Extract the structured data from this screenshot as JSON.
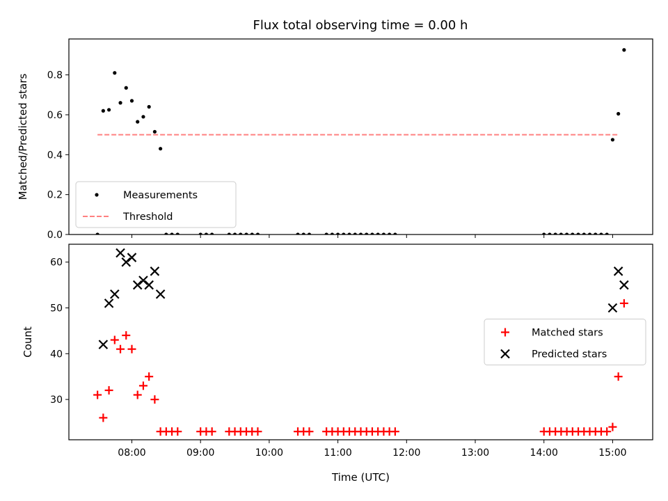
{
  "figure": {
    "title": "Flux total observing time = 0.00 h"
  },
  "colors": {
    "measurements": "#000000",
    "threshold": "#ff8080",
    "matched": "#ff0000",
    "predicted": "#000000"
  },
  "chart_data": [
    {
      "type": "scatter",
      "title": "Flux total observing time = 0.00 h",
      "xlabel": "",
      "ylabel": "Matched/Predicted stars",
      "x_is_time": true,
      "xlim": [
        "07:05",
        "15:35"
      ],
      "ylim": [
        0,
        0.98
      ],
      "yticks": [
        0.0,
        0.2,
        0.4,
        0.6,
        0.8
      ],
      "ytick_labels": [
        "0.0",
        "0.2",
        "0.4",
        "0.6",
        "0.8"
      ],
      "xticks": [
        "08:00",
        "09:00",
        "10:00",
        "11:00",
        "12:00",
        "13:00",
        "14:00",
        "15:00"
      ],
      "legend": {
        "position": "lower-left",
        "entries": [
          "Measurements",
          "Threshold"
        ]
      },
      "series": [
        {
          "name": "Measurements",
          "marker": "dot",
          "color": "#000000",
          "x": [
            "07:30",
            "07:35",
            "07:40",
            "07:45",
            "07:50",
            "07:55",
            "08:00",
            "08:05",
            "08:10",
            "08:15",
            "08:20",
            "08:25",
            "08:30",
            "08:35",
            "08:40",
            "09:00",
            "09:05",
            "09:10",
            "09:25",
            "09:30",
            "09:35",
            "09:40",
            "09:45",
            "09:50",
            "10:25",
            "10:30",
            "10:35",
            "10:50",
            "10:55",
            "11:00",
            "11:05",
            "11:10",
            "11:15",
            "11:20",
            "11:25",
            "11:30",
            "11:35",
            "11:40",
            "11:45",
            "11:50",
            "14:00",
            "14:05",
            "14:10",
            "14:15",
            "14:20",
            "14:25",
            "14:30",
            "14:35",
            "14:40",
            "14:45",
            "14:50",
            "14:55",
            "15:00",
            "15:05",
            "15:10"
          ],
          "y": [
            0.0,
            0.62,
            0.625,
            0.81,
            0.66,
            0.735,
            0.67,
            0.565,
            0.59,
            0.64,
            0.515,
            0.43,
            0.0,
            0.0,
            0.0,
            0.0,
            0.0,
            0.0,
            0.0,
            0.0,
            0.0,
            0.0,
            0.0,
            0.0,
            0.0,
            0.0,
            0.0,
            0.0,
            0.0,
            0.0,
            0.0,
            0.0,
            0.0,
            0.0,
            0.0,
            0.0,
            0.0,
            0.0,
            0.0,
            0.0,
            0.0,
            0.0,
            0.0,
            0.0,
            0.0,
            0.0,
            0.0,
            0.0,
            0.0,
            0.0,
            0.0,
            0.0,
            0.475,
            0.605,
            0.925
          ]
        },
        {
          "name": "Threshold",
          "type": "line",
          "style": "dashed",
          "color": "#ff8080",
          "x": [
            "07:30",
            "15:05"
          ],
          "y": [
            0.5,
            0.5
          ]
        }
      ]
    },
    {
      "type": "scatter",
      "title": "",
      "xlabel": "Time (UTC)",
      "ylabel": "Count",
      "x_is_time": true,
      "xlim": [
        "07:05",
        "15:35"
      ],
      "ylim": [
        21.2,
        63.9
      ],
      "yticks": [
        30,
        40,
        50,
        60
      ],
      "ytick_labels": [
        "30",
        "40",
        "50",
        "60"
      ],
      "xticks": [
        "08:00",
        "09:00",
        "10:00",
        "11:00",
        "12:00",
        "13:00",
        "14:00",
        "15:00"
      ],
      "xtick_labels": [
        "08:00",
        "09:00",
        "10:00",
        "11:00",
        "12:00",
        "13:00",
        "14:00",
        "15:00"
      ],
      "legend": {
        "position": "center-right",
        "entries": [
          "Matched stars",
          "Predicted stars"
        ]
      },
      "series": [
        {
          "name": "Matched stars",
          "marker": "plus",
          "color": "#ff0000",
          "x": [
            "07:30",
            "07:35",
            "07:40",
            "07:45",
            "07:50",
            "07:55",
            "08:00",
            "08:05",
            "08:10",
            "08:15",
            "08:20",
            "08:25",
            "08:30",
            "08:35",
            "08:40",
            "09:00",
            "09:05",
            "09:10",
            "09:25",
            "09:30",
            "09:35",
            "09:40",
            "09:45",
            "09:50",
            "10:25",
            "10:30",
            "10:35",
            "10:50",
            "10:55",
            "11:00",
            "11:05",
            "11:10",
            "11:15",
            "11:20",
            "11:25",
            "11:30",
            "11:35",
            "11:40",
            "11:45",
            "11:50",
            "14:00",
            "14:05",
            "14:10",
            "14:15",
            "14:20",
            "14:25",
            "14:30",
            "14:35",
            "14:40",
            "14:45",
            "14:50",
            "14:55",
            "15:00",
            "15:05",
            "15:10"
          ],
          "y": [
            31,
            26,
            32,
            43,
            41,
            44,
            41,
            31,
            33,
            35,
            30,
            23,
            23,
            23,
            23,
            23,
            23,
            23,
            23,
            23,
            23,
            23,
            23,
            23,
            23,
            23,
            23,
            23,
            23,
            23,
            23,
            23,
            23,
            23,
            23,
            23,
            23,
            23,
            23,
            23,
            23,
            23,
            23,
            23,
            23,
            23,
            23,
            23,
            23,
            23,
            23,
            23,
            24,
            35,
            51
          ]
        },
        {
          "name": "Predicted stars",
          "marker": "x",
          "color": "#000000",
          "x": [
            "07:35",
            "07:40",
            "07:45",
            "07:50",
            "07:55",
            "08:00",
            "08:05",
            "08:10",
            "08:15",
            "08:20",
            "08:25",
            "15:00",
            "15:05",
            "15:10"
          ],
          "y": [
            42,
            51,
            53,
            62,
            60,
            61,
            55,
            56,
            55,
            58,
            53,
            50,
            58,
            55
          ]
        }
      ]
    }
  ]
}
